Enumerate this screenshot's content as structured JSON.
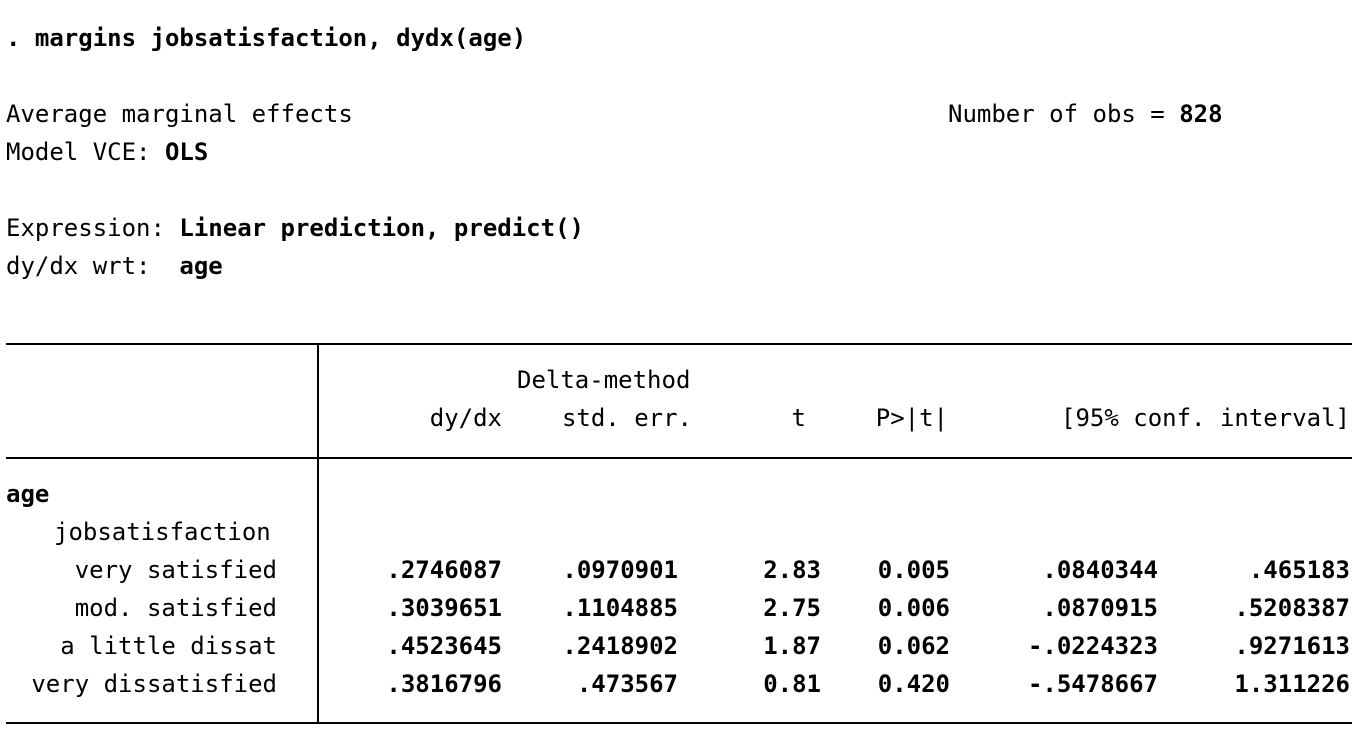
{
  "command": ". margins jobsatisfaction, dydx(age)",
  "header": {
    "title": "Average marginal effects",
    "nobs_label": "Number of obs = ",
    "nobs_value": "828",
    "vce_label": "Model VCE: ",
    "vce_value": "OLS",
    "expression_label": "Expression: ",
    "expression_value": "Linear prediction, predict()",
    "wrt_label": "dy/dx wrt:  ",
    "wrt_value": "age"
  },
  "table": {
    "header_top": "Delta-method",
    "columns": [
      "dy/dx",
      "std. err.",
      "t",
      "P>|t|",
      "[95% conf. interval]"
    ],
    "group_label": "age",
    "subgroup_label": "jobsatisfaction",
    "rows": [
      {
        "label": "very satisfied",
        "dydx": ".2746087",
        "se": ".0970901",
        "t": "2.83",
        "p": "0.005",
        "lo": ".0840344",
        "hi": ".465183"
      },
      {
        "label": "mod. satisfied",
        "dydx": ".3039651",
        "se": ".1104885",
        "t": "2.75",
        "p": "0.006",
        "lo": ".0870915",
        "hi": ".5208387"
      },
      {
        "label": "a little dissat",
        "dydx": ".4523645",
        "se": ".2418902",
        "t": "1.87",
        "p": "0.062",
        "lo": "-.0224323",
        "hi": ".9271613"
      },
      {
        "label": "very dissatisfied",
        "dydx": ".3816796",
        "se": ".473567",
        "t": "0.81",
        "p": "0.420",
        "lo": "-.5478667",
        "hi": "1.311226"
      }
    ]
  }
}
